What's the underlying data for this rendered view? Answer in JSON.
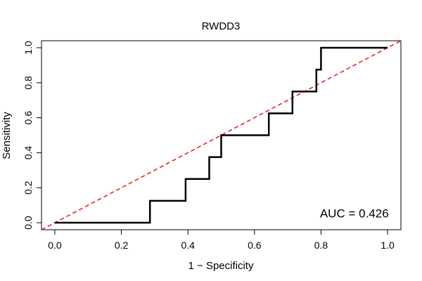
{
  "chart_data": {
    "type": "line",
    "title": "RWDD3",
    "xlabel": "1 − Specificity",
    "ylabel": "Sensitivity",
    "xlim": [
      -0.04,
      1.04
    ],
    "ylim": [
      -0.04,
      1.04
    ],
    "x_ticks": [
      0.0,
      0.2,
      0.4,
      0.6,
      0.8,
      1.0
    ],
    "x_tick_labels": [
      "0.0",
      "0.2",
      "0.4",
      "0.6",
      "0.8",
      "1.0"
    ],
    "y_ticks": [
      0.0,
      0.2,
      0.4,
      0.6,
      0.8,
      1.0
    ],
    "y_tick_labels": [
      "0.0",
      "0.2",
      "0.4",
      "0.6",
      "0.8",
      "1.0"
    ],
    "grid": false,
    "series": [
      {
        "name": "ROC curve",
        "color": "#000000",
        "style": "solid",
        "x": [
          0.0,
          0.286,
          0.286,
          0.393,
          0.393,
          0.464,
          0.464,
          0.5,
          0.5,
          0.643,
          0.643,
          0.714,
          0.714,
          0.786,
          0.786,
          0.8,
          0.8,
          1.0
        ],
        "y": [
          0.0,
          0.0,
          0.125,
          0.125,
          0.25,
          0.25,
          0.375,
          0.375,
          0.5,
          0.5,
          0.625,
          0.625,
          0.75,
          0.75,
          0.875,
          0.875,
          1.0,
          1.0
        ]
      },
      {
        "name": "Reference diagonal",
        "color": "#e41a1c",
        "style": "dashed",
        "x": [
          -0.04,
          1.04
        ],
        "y": [
          -0.04,
          1.04
        ]
      }
    ],
    "annotations": [
      {
        "text": "AUC = 0.426",
        "x": 0.9,
        "y": 0.03
      }
    ]
  }
}
